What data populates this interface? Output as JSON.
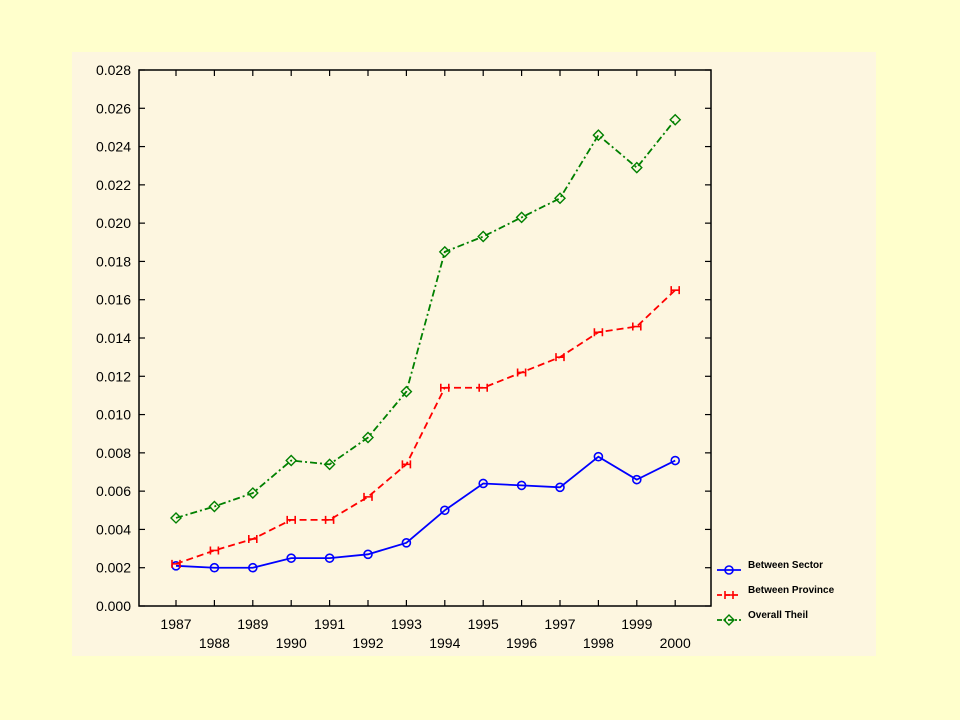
{
  "chart_data": {
    "type": "line",
    "title": "",
    "xlabel": "",
    "ylabel": "",
    "x": [
      1987,
      1988,
      1989,
      1990,
      1991,
      1992,
      1993,
      1994,
      1995,
      1996,
      1997,
      1998,
      1999,
      2000
    ],
    "ylim": [
      0,
      0.028
    ],
    "y_ticks": [
      "0.000",
      "0.002",
      "0.004",
      "0.006",
      "0.008",
      "0.010",
      "0.012",
      "0.014",
      "0.016",
      "0.018",
      "0.020",
      "0.022",
      "0.024",
      "0.026",
      "0.028"
    ],
    "x_ticks_upper": [
      "1987",
      "1989",
      "1991",
      "1993",
      "1995",
      "1997",
      "1999"
    ],
    "x_ticks_lower": [
      "1988",
      "1990",
      "1992",
      "1994",
      "1996",
      "1998",
      "2000"
    ],
    "grid": false,
    "legend_position": "bottom-right, outside plot",
    "series": [
      {
        "name": "Between Sector",
        "color": "#0000ff",
        "line_style": "solid",
        "marker": "circle",
        "values": [
          0.0021,
          0.002,
          0.002,
          0.0025,
          0.0025,
          0.0027,
          0.0033,
          0.005,
          0.0064,
          0.0063,
          0.0062,
          0.0078,
          0.0066,
          0.0076
        ]
      },
      {
        "name": "Between Province",
        "color": "#ff0000",
        "line_style": "dashed",
        "marker": "square",
        "values": [
          0.0022,
          0.0029,
          0.0035,
          0.0045,
          0.0045,
          0.0057,
          0.0074,
          0.0114,
          0.0114,
          0.0122,
          0.013,
          0.0143,
          0.0146,
          0.0165
        ]
      },
      {
        "name": "Overall Theil",
        "color": "#008000",
        "line_style": "dash-dot",
        "marker": "diamond",
        "values": [
          0.0046,
          0.0052,
          0.0059,
          0.0076,
          0.0074,
          0.0088,
          0.0112,
          0.0185,
          0.0193,
          0.0203,
          0.0213,
          0.0246,
          0.0229,
          0.0254
        ]
      }
    ]
  }
}
